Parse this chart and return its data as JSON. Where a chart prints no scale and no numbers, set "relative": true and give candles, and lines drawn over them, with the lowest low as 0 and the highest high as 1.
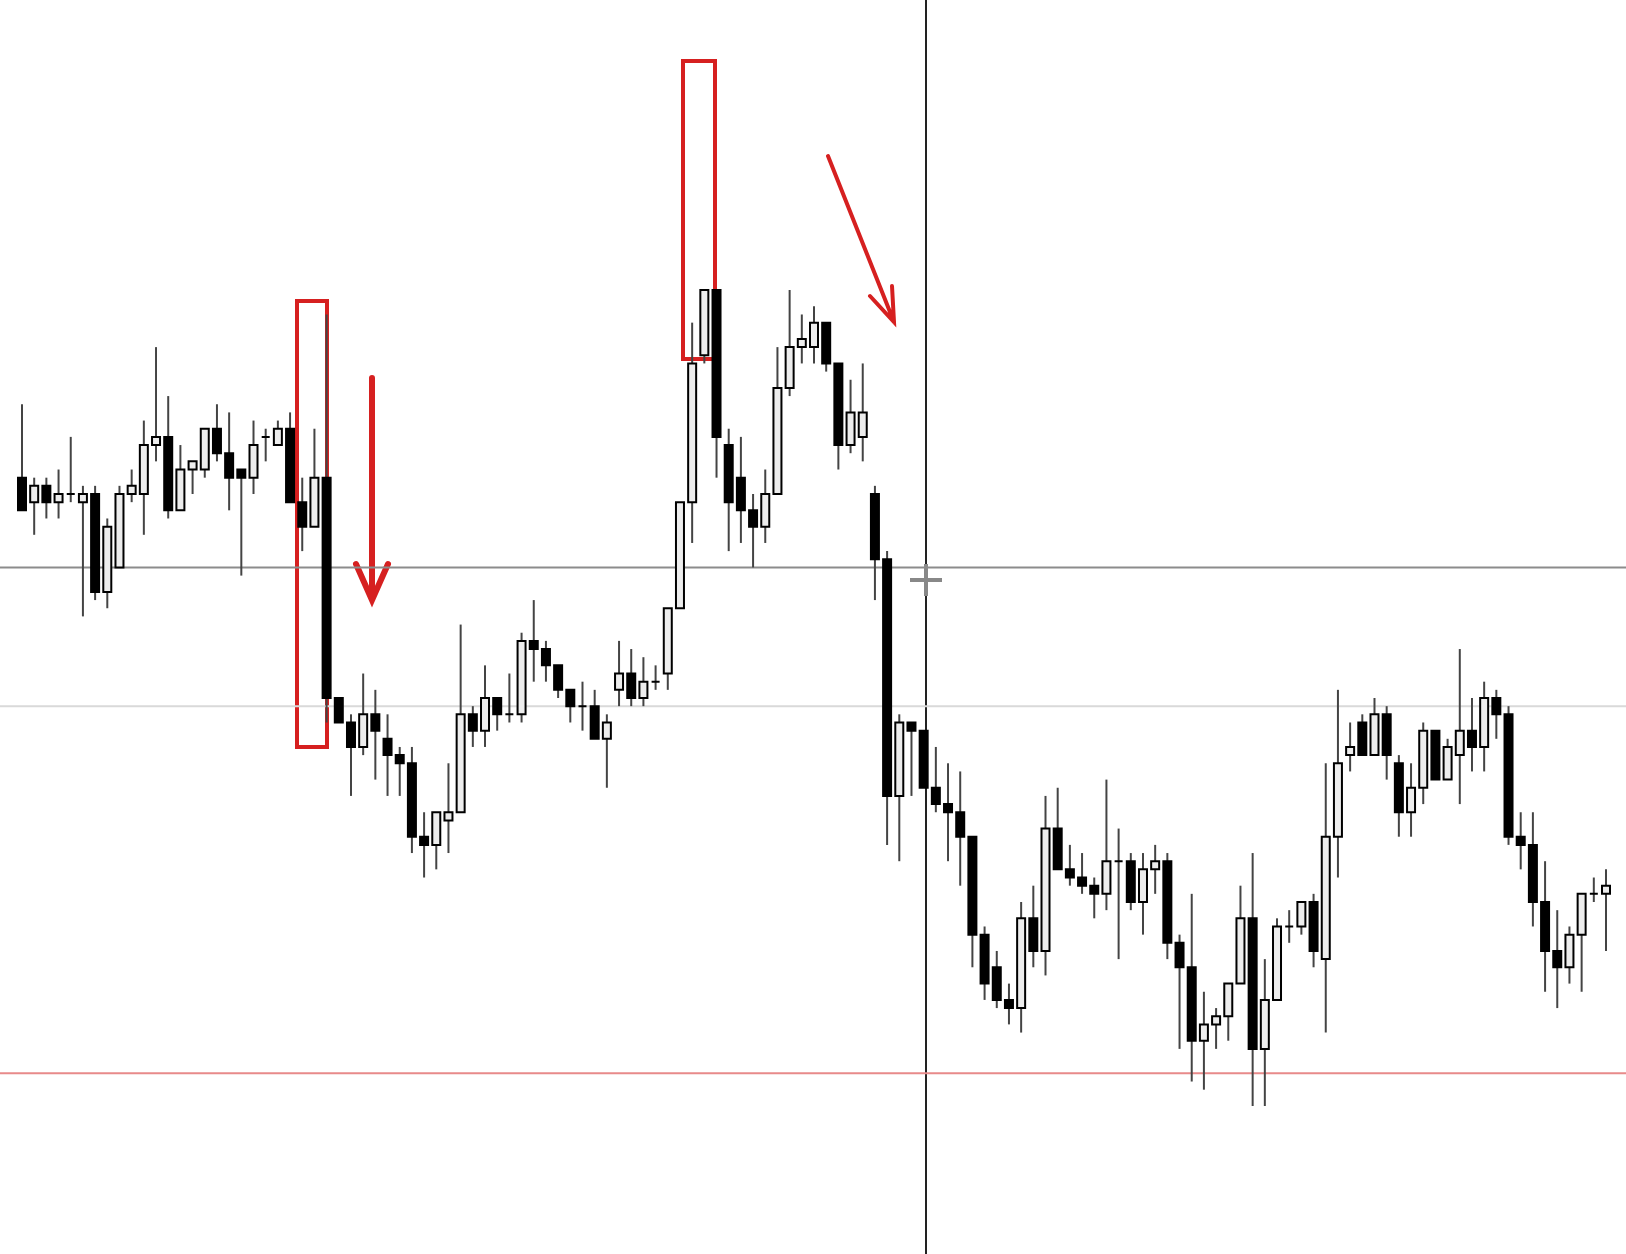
{
  "chart_data": {
    "type": "candlestick",
    "relative": true,
    "categories": [
      null,
      null,
      null,
      null,
      null,
      null,
      null,
      null,
      null,
      null,
      null,
      null,
      null,
      null,
      null,
      null,
      null,
      null,
      null,
      null,
      null,
      null,
      null,
      null,
      null,
      null,
      null,
      null,
      null,
      null,
      null,
      null,
      null,
      null,
      null,
      null,
      null,
      null,
      null,
      null,
      null,
      null,
      null,
      null,
      null,
      null,
      null,
      null,
      null,
      null,
      null,
      null,
      null,
      null,
      null,
      null,
      null,
      null,
      null,
      null,
      null,
      null,
      null,
      null,
      null,
      null,
      null,
      null,
      null,
      null,
      null,
      null,
      null,
      null,
      null,
      null,
      null,
      null,
      null,
      null,
      null,
      null,
      null,
      null,
      null,
      null,
      null,
      null,
      null,
      null,
      null,
      null,
      null,
      null,
      null,
      null,
      null,
      null,
      null,
      null,
      null,
      null,
      null,
      null,
      null,
      null,
      null,
      null,
      null,
      null,
      null,
      null,
      null,
      null,
      null,
      null,
      null,
      null,
      null,
      null,
      null,
      null,
      null,
      null,
      null,
      null,
      null,
      null,
      null,
      null,
      null
    ],
    "ohlc": [
      [
        0.77,
        0.86,
        0.73,
        0.73
      ],
      [
        0.74,
        0.77,
        0.7,
        0.76
      ],
      [
        0.76,
        0.77,
        0.72,
        0.74
      ],
      [
        0.74,
        0.78,
        0.72,
        0.75
      ],
      [
        0.75,
        0.82,
        0.74,
        0.75
      ],
      [
        0.74,
        0.76,
        0.6,
        0.75
      ],
      [
        0.75,
        0.76,
        0.62,
        0.63
      ],
      [
        0.63,
        0.72,
        0.61,
        0.71
      ],
      [
        0.66,
        0.76,
        0.66,
        0.75
      ],
      [
        0.75,
        0.78,
        0.74,
        0.76
      ],
      [
        0.75,
        0.84,
        0.7,
        0.81
      ],
      [
        0.81,
        0.93,
        0.79,
        0.82
      ],
      [
        0.82,
        0.87,
        0.72,
        0.73
      ],
      [
        0.73,
        0.81,
        0.73,
        0.78
      ],
      [
        0.78,
        0.79,
        0.75,
        0.79
      ],
      [
        0.78,
        0.83,
        0.77,
        0.83
      ],
      [
        0.83,
        0.86,
        0.79,
        0.8
      ],
      [
        0.8,
        0.85,
        0.73,
        0.77
      ],
      [
        0.78,
        0.78,
        0.65,
        0.77
      ],
      [
        0.77,
        0.84,
        0.75,
        0.81
      ],
      [
        0.82,
        0.83,
        0.79,
        0.82
      ],
      [
        0.81,
        0.84,
        0.81,
        0.83
      ],
      [
        0.83,
        0.85,
        0.74,
        0.74
      ],
      [
        0.74,
        0.77,
        0.68,
        0.71
      ],
      [
        0.71,
        0.83,
        0.71,
        0.77
      ],
      [
        0.77,
        0.97,
        0.47,
        0.5
      ],
      [
        0.5,
        0.5,
        0.47,
        0.47
      ],
      [
        0.47,
        0.48,
        0.38,
        0.44
      ],
      [
        0.44,
        0.53,
        0.43,
        0.48
      ],
      [
        0.48,
        0.51,
        0.4,
        0.46
      ],
      [
        0.45,
        0.48,
        0.38,
        0.43
      ],
      [
        0.43,
        0.44,
        0.38,
        0.42
      ],
      [
        0.42,
        0.44,
        0.31,
        0.33
      ],
      [
        0.33,
        0.36,
        0.28,
        0.32
      ],
      [
        0.32,
        0.36,
        0.29,
        0.36
      ],
      [
        0.35,
        0.42,
        0.31,
        0.36
      ],
      [
        0.36,
        0.59,
        0.36,
        0.48
      ],
      [
        0.48,
        0.49,
        0.44,
        0.46
      ],
      [
        0.46,
        0.54,
        0.44,
        0.5
      ],
      [
        0.5,
        0.5,
        0.46,
        0.48
      ],
      [
        0.48,
        0.53,
        0.47,
        0.48
      ],
      [
        0.48,
        0.58,
        0.47,
        0.57
      ],
      [
        0.57,
        0.62,
        0.52,
        0.56
      ],
      [
        0.56,
        0.57,
        0.52,
        0.54
      ],
      [
        0.54,
        0.54,
        0.5,
        0.51
      ],
      [
        0.51,
        0.51,
        0.47,
        0.49
      ],
      [
        0.49,
        0.52,
        0.46,
        0.49
      ],
      [
        0.49,
        0.51,
        0.45,
        0.45
      ],
      [
        0.45,
        0.48,
        0.39,
        0.47
      ],
      [
        0.51,
        0.57,
        0.49,
        0.53
      ],
      [
        0.53,
        0.56,
        0.49,
        0.5
      ],
      [
        0.5,
        0.55,
        0.49,
        0.52
      ],
      [
        0.52,
        0.54,
        0.51,
        0.52
      ],
      [
        0.53,
        0.61,
        0.51,
        0.61
      ],
      [
        0.61,
        0.74,
        0.61,
        0.74
      ],
      [
        0.74,
        0.96,
        0.69,
        0.91
      ],
      [
        0.92,
        1.0,
        0.91,
        1.0
      ],
      [
        1.0,
        1.0,
        0.77,
        0.82
      ],
      [
        0.81,
        0.83,
        0.68,
        0.74
      ],
      [
        0.77,
        0.82,
        0.69,
        0.73
      ],
      [
        0.73,
        0.75,
        0.66,
        0.71
      ],
      [
        0.71,
        0.78,
        0.69,
        0.75
      ],
      [
        0.75,
        0.93,
        0.75,
        0.88
      ],
      [
        0.88,
        1.0,
        0.87,
        0.93
      ],
      [
        0.93,
        0.97,
        0.91,
        0.94
      ],
      [
        0.93,
        0.98,
        0.91,
        0.96
      ],
      [
        0.96,
        0.96,
        0.9,
        0.91
      ],
      [
        0.91,
        0.91,
        0.78,
        0.81
      ],
      [
        0.81,
        0.89,
        0.8,
        0.85
      ],
      [
        0.82,
        0.91,
        0.79,
        0.85
      ],
      [
        0.75,
        0.76,
        0.62,
        0.67
      ],
      [
        0.67,
        0.68,
        0.32,
        0.38
      ],
      [
        0.38,
        0.48,
        0.3,
        0.47
      ],
      [
        0.47,
        0.47,
        0.38,
        0.46
      ],
      [
        0.46,
        0.46,
        0.39,
        0.39
      ],
      [
        0.39,
        0.44,
        0.36,
        0.37
      ],
      [
        0.37,
        0.42,
        0.3,
        0.36
      ],
      [
        0.36,
        0.41,
        0.27,
        0.33
      ],
      [
        0.33,
        0.33,
        0.17,
        0.21
      ],
      [
        0.21,
        0.22,
        0.13,
        0.15
      ],
      [
        0.17,
        0.19,
        0.12,
        0.13
      ],
      [
        0.13,
        0.15,
        0.1,
        0.12
      ],
      [
        0.12,
        0.25,
        0.09,
        0.23
      ],
      [
        0.23,
        0.27,
        0.17,
        0.19
      ],
      [
        0.19,
        0.38,
        0.16,
        0.34
      ],
      [
        0.34,
        0.39,
        0.29,
        0.29
      ],
      [
        0.29,
        0.32,
        0.27,
        0.28
      ],
      [
        0.28,
        0.31,
        0.26,
        0.27
      ],
      [
        0.27,
        0.28,
        0.23,
        0.26
      ],
      [
        0.26,
        0.4,
        0.24,
        0.3
      ],
      [
        0.3,
        0.34,
        0.18,
        0.3
      ],
      [
        0.3,
        0.31,
        0.24,
        0.25
      ],
      [
        0.25,
        0.31,
        0.21,
        0.29
      ],
      [
        0.29,
        0.32,
        0.26,
        0.3
      ],
      [
        0.3,
        0.31,
        0.18,
        0.2
      ],
      [
        0.2,
        0.21,
        0.07,
        0.17
      ],
      [
        0.17,
        0.26,
        0.03,
        0.08
      ],
      [
        0.08,
        0.14,
        0.02,
        0.1
      ],
      [
        0.1,
        0.12,
        0.07,
        0.11
      ],
      [
        0.11,
        0.15,
        0.08,
        0.15
      ],
      [
        0.15,
        0.27,
        0.15,
        0.23
      ],
      [
        0.23,
        0.31,
        0.0,
        0.07
      ],
      [
        0.07,
        0.18,
        0.0,
        0.13
      ],
      [
        0.13,
        0.23,
        0.13,
        0.22
      ],
      [
        0.22,
        0.24,
        0.2,
        0.22
      ],
      [
        0.22,
        0.25,
        0.21,
        0.25
      ],
      [
        0.25,
        0.26,
        0.17,
        0.19
      ],
      [
        0.18,
        0.42,
        0.09,
        0.33
      ],
      [
        0.33,
        0.51,
        0.28,
        0.42
      ],
      [
        0.43,
        0.47,
        0.41,
        0.44
      ],
      [
        0.47,
        0.48,
        0.43,
        0.43
      ],
      [
        0.43,
        0.5,
        0.43,
        0.48
      ],
      [
        0.48,
        0.49,
        0.4,
        0.43
      ],
      [
        0.42,
        0.43,
        0.33,
        0.36
      ],
      [
        0.36,
        0.42,
        0.33,
        0.39
      ],
      [
        0.39,
        0.47,
        0.37,
        0.46
      ],
      [
        0.46,
        0.46,
        0.4,
        0.4
      ],
      [
        0.4,
        0.45,
        0.4,
        0.44
      ],
      [
        0.43,
        0.56,
        0.37,
        0.46
      ],
      [
        0.46,
        0.5,
        0.41,
        0.44
      ],
      [
        0.44,
        0.52,
        0.41,
        0.5
      ],
      [
        0.5,
        0.51,
        0.45,
        0.48
      ],
      [
        0.48,
        0.49,
        0.32,
        0.33
      ],
      [
        0.33,
        0.36,
        0.29,
        0.32
      ],
      [
        0.32,
        0.36,
        0.22,
        0.25
      ],
      [
        0.25,
        0.3,
        0.14,
        0.19
      ],
      [
        0.19,
        0.24,
        0.12,
        0.17
      ],
      [
        0.17,
        0.22,
        0.15,
        0.21
      ],
      [
        0.21,
        0.26,
        0.14,
        0.26
      ],
      [
        0.26,
        0.28,
        0.25,
        0.26
      ],
      [
        0.26,
        0.29,
        0.19,
        0.27
      ]
    ],
    "ref_lines": [
      {
        "axis": "y",
        "value": 0.66,
        "color": "#8c8c8c"
      },
      {
        "axis": "y",
        "value": 0.49,
        "color": "#d9d9d9"
      },
      {
        "axis": "y",
        "value": 0.04,
        "color": "#e88a8a"
      }
    ]
  }
}
